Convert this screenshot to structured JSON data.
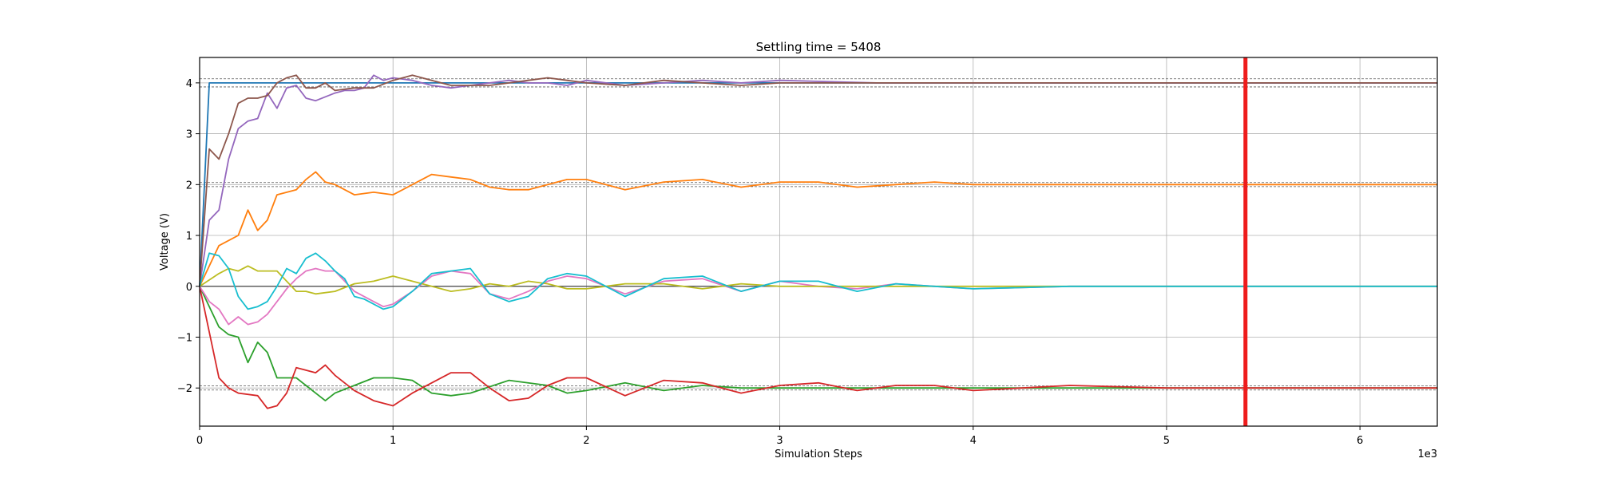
{
  "chart_data": {
    "type": "line",
    "title": "Settling time = 5408",
    "xlabel": "Simulation Steps",
    "ylabel": "Voltage (V)",
    "x_offset_label": "1e3",
    "xlim": [
      0,
      6400
    ],
    "ylim": [
      -2.75,
      4.5
    ],
    "x_ticks": [
      0,
      1000,
      2000,
      3000,
      4000,
      5000,
      6000
    ],
    "x_tick_labels": [
      "0",
      "1",
      "2",
      "3",
      "4",
      "5",
      "6"
    ],
    "y_ticks": [
      -2,
      -1,
      0,
      1,
      2,
      3,
      4
    ],
    "y_tick_labels": [
      "−2",
      "−1",
      "0",
      "1",
      "2",
      "3",
      "4"
    ],
    "grid": true,
    "settling_line": {
      "x": 5408,
      "color": "#ee1c1c"
    },
    "reference_bands": [
      {
        "center": 4,
        "half_width": 0.08
      },
      {
        "center": 2,
        "half_width": 0.04
      },
      {
        "center": 0,
        "half_width": 0.0
      },
      {
        "center": -2,
        "half_width": 0.04
      }
    ],
    "series": [
      {
        "color": "#1f77b4",
        "x": [
          0,
          50,
          6400
        ],
        "y": [
          0,
          4,
          4
        ]
      },
      {
        "color": "#ff7f0e",
        "x": [
          0,
          100,
          200,
          250,
          300,
          350,
          400,
          500,
          550,
          600,
          650,
          700,
          800,
          900,
          1000,
          1100,
          1200,
          1300,
          1400,
          1500,
          1600,
          1700,
          1900,
          2000,
          2200,
          2400,
          2600,
          2800,
          3000,
          3200,
          3400,
          3600,
          3800,
          4000,
          4500,
          5000,
          5408,
          6000,
          6400
        ],
        "y": [
          0,
          0.8,
          1.0,
          1.5,
          1.1,
          1.3,
          1.8,
          1.9,
          2.1,
          2.25,
          2.05,
          2.0,
          1.8,
          1.85,
          1.8,
          2.0,
          2.2,
          2.15,
          2.1,
          1.95,
          1.9,
          1.9,
          2.1,
          2.1,
          1.9,
          2.05,
          2.1,
          1.95,
          2.05,
          2.05,
          1.95,
          2.0,
          2.05,
          2.0,
          2.0,
          2.0,
          2.0,
          2.0,
          2.0
        ]
      },
      {
        "color": "#2ca02c",
        "x": [
          0,
          100,
          150,
          200,
          250,
          300,
          350,
          400,
          500,
          600,
          650,
          700,
          800,
          900,
          1000,
          1100,
          1200,
          1300,
          1400,
          1600,
          1800,
          1900,
          2000,
          2200,
          2400,
          2600,
          2800,
          3000,
          3500,
          4000,
          5000,
          5408,
          6000,
          6400
        ],
        "y": [
          0,
          -0.8,
          -0.95,
          -1.0,
          -1.5,
          -1.1,
          -1.3,
          -1.8,
          -1.8,
          -2.1,
          -2.25,
          -2.1,
          -1.95,
          -1.8,
          -1.8,
          -1.85,
          -2.1,
          -2.15,
          -2.1,
          -1.85,
          -1.95,
          -2.1,
          -2.05,
          -1.9,
          -2.05,
          -1.95,
          -2.0,
          -2.0,
          -2.0,
          -2.0,
          -2.0,
          -2.0,
          -2.0,
          -2.0
        ]
      },
      {
        "color": "#d62728",
        "x": [
          0,
          100,
          150,
          200,
          300,
          350,
          400,
          450,
          500,
          600,
          650,
          700,
          800,
          900,
          1000,
          1100,
          1200,
          1300,
          1400,
          1500,
          1600,
          1700,
          1800,
          1900,
          2000,
          2200,
          2400,
          2600,
          2800,
          3000,
          3200,
          3400,
          3600,
          3800,
          4000,
          4500,
          5000,
          5408,
          6000,
          6400
        ],
        "y": [
          0,
          -1.8,
          -2.0,
          -2.1,
          -2.15,
          -2.4,
          -2.35,
          -2.1,
          -1.6,
          -1.7,
          -1.55,
          -1.75,
          -2.05,
          -2.25,
          -2.35,
          -2.1,
          -1.9,
          -1.7,
          -1.7,
          -2.0,
          -2.25,
          -2.2,
          -1.95,
          -1.8,
          -1.8,
          -2.15,
          -1.85,
          -1.9,
          -2.1,
          -1.95,
          -1.9,
          -2.05,
          -1.95,
          -1.95,
          -2.05,
          -1.95,
          -2.0,
          -2.0,
          -2.0,
          -2.0
        ]
      },
      {
        "color": "#9467bd",
        "x": [
          0,
          50,
          100,
          150,
          200,
          250,
          300,
          350,
          400,
          450,
          500,
          550,
          600,
          700,
          750,
          800,
          850,
          900,
          950,
          1000,
          1100,
          1200,
          1300,
          1400,
          1500,
          1600,
          1700,
          1800,
          1900,
          2000,
          2200,
          2400,
          2600,
          2800,
          3000,
          3500,
          4000,
          5000,
          5408,
          6000,
          6400
        ],
        "y": [
          0,
          1.3,
          1.5,
          2.5,
          3.1,
          3.25,
          3.3,
          3.8,
          3.5,
          3.9,
          3.95,
          3.7,
          3.65,
          3.8,
          3.85,
          3.85,
          3.9,
          4.15,
          4.05,
          4.1,
          4.05,
          3.95,
          3.9,
          3.95,
          4.0,
          4.05,
          4.0,
          4.0,
          3.95,
          4.05,
          3.95,
          4.0,
          4.05,
          4.0,
          4.05,
          4.0,
          4.0,
          4.0,
          4.0,
          4.0,
          4.0
        ]
      },
      {
        "color": "#8c564b",
        "x": [
          0,
          50,
          100,
          150,
          200,
          250,
          300,
          350,
          400,
          450,
          500,
          550,
          600,
          650,
          700,
          800,
          900,
          1000,
          1100,
          1200,
          1300,
          1400,
          1500,
          1600,
          1700,
          1800,
          1900,
          2000,
          2200,
          2400,
          2600,
          2800,
          3000,
          3500,
          4000,
          5000,
          5408,
          6000,
          6400
        ],
        "y": [
          0,
          2.7,
          2.5,
          3.0,
          3.6,
          3.7,
          3.7,
          3.75,
          4.0,
          4.1,
          4.15,
          3.9,
          3.9,
          4.0,
          3.85,
          3.9,
          3.9,
          4.05,
          4.15,
          4.05,
          3.95,
          3.95,
          3.95,
          4.0,
          4.05,
          4.1,
          4.05,
          4.0,
          3.95,
          4.05,
          4.0,
          3.95,
          4.0,
          4.0,
          4.0,
          4.0,
          4.0,
          4.0,
          4.0
        ]
      },
      {
        "color": "#e377c2",
        "x": [
          0,
          50,
          100,
          150,
          200,
          250,
          300,
          350,
          400,
          450,
          500,
          550,
          600,
          650,
          700,
          800,
          900,
          950,
          1000,
          1100,
          1200,
          1300,
          1400,
          1500,
          1600,
          1700,
          1800,
          1900,
          2000,
          2200,
          2400,
          2600,
          2800,
          3000,
          3200,
          3400,
          3600,
          3800,
          4000,
          4500,
          5000,
          5408,
          6000,
          6400
        ],
        "y": [
          0,
          -0.3,
          -0.45,
          -0.75,
          -0.6,
          -0.75,
          -0.7,
          -0.55,
          -0.3,
          -0.05,
          0.15,
          0.3,
          0.35,
          0.3,
          0.3,
          -0.1,
          -0.3,
          -0.4,
          -0.35,
          -0.1,
          0.2,
          0.3,
          0.25,
          -0.15,
          -0.25,
          -0.1,
          0.1,
          0.2,
          0.15,
          -0.15,
          0.1,
          0.15,
          -0.1,
          0.1,
          0.0,
          -0.05,
          0.05,
          0.0,
          -0.05,
          0.0,
          0.0,
          0.0,
          0.0,
          0.0
        ]
      },
      {
        "color": "#bcbd22",
        "x": [
          0,
          100,
          150,
          200,
          250,
          300,
          400,
          450,
          500,
          550,
          600,
          700,
          800,
          900,
          1000,
          1100,
          1200,
          1300,
          1400,
          1500,
          1600,
          1700,
          1800,
          1900,
          2000,
          2200,
          2400,
          2600,
          2800,
          3000,
          3500,
          4000,
          5000,
          5408,
          6000,
          6400
        ],
        "y": [
          0,
          0.25,
          0.35,
          0.3,
          0.4,
          0.3,
          0.3,
          0.1,
          -0.1,
          -0.1,
          -0.15,
          -0.1,
          0.05,
          0.1,
          0.2,
          0.1,
          0.0,
          -0.1,
          -0.05,
          0.05,
          0.0,
          0.1,
          0.05,
          -0.05,
          -0.05,
          0.05,
          0.05,
          -0.05,
          0.05,
          0.0,
          0.0,
          0.0,
          0.0,
          0.0,
          0.0,
          0.0
        ]
      },
      {
        "color": "#17becf",
        "x": [
          0,
          50,
          100,
          150,
          200,
          250,
          300,
          350,
          400,
          450,
          500,
          550,
          600,
          650,
          700,
          750,
          800,
          850,
          900,
          950,
          1000,
          1100,
          1200,
          1300,
          1400,
          1500,
          1600,
          1700,
          1800,
          1900,
          2000,
          2200,
          2400,
          2600,
          2800,
          3000,
          3200,
          3400,
          3600,
          3800,
          4000,
          4500,
          5000,
          5408,
          6000,
          6400
        ],
        "y": [
          0,
          0.65,
          0.6,
          0.35,
          -0.2,
          -0.45,
          -0.4,
          -0.3,
          0.0,
          0.35,
          0.25,
          0.55,
          0.65,
          0.5,
          0.3,
          0.15,
          -0.2,
          -0.25,
          -0.35,
          -0.45,
          -0.4,
          -0.1,
          0.25,
          0.3,
          0.35,
          -0.15,
          -0.3,
          -0.2,
          0.15,
          0.25,
          0.2,
          -0.2,
          0.15,
          0.2,
          -0.1,
          0.1,
          0.1,
          -0.1,
          0.05,
          0.0,
          -0.05,
          0.0,
          0.0,
          0.0,
          0.0,
          0.0
        ]
      }
    ]
  }
}
